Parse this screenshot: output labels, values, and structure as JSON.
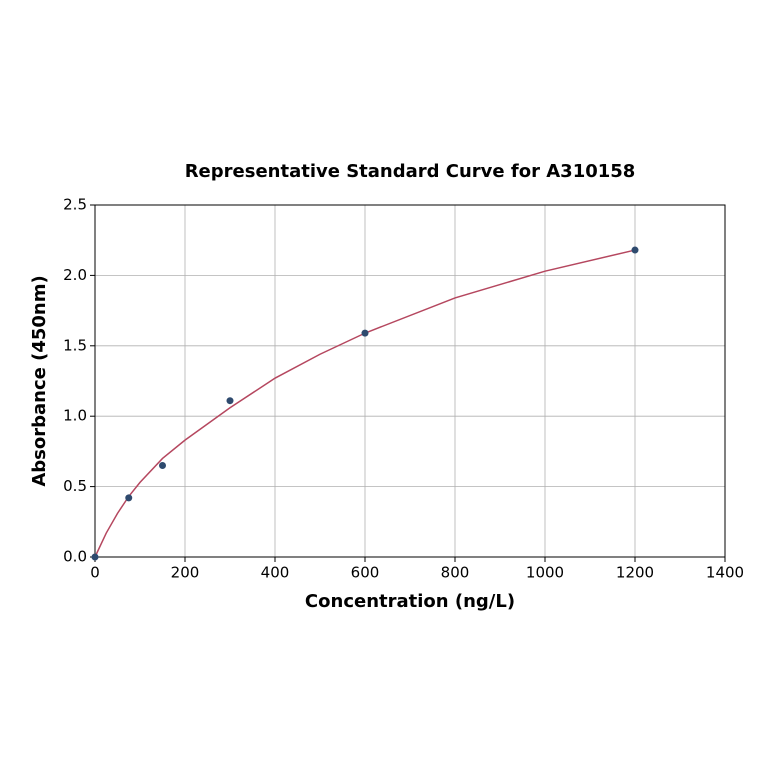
{
  "chart_data": {
    "type": "scatter",
    "title": "Representative Standard Curve for A310158",
    "x_label": "Concentration (ng/L)",
    "y_label": "Absorbance (450nm)",
    "x": [
      0,
      75,
      150,
      300,
      600,
      1200
    ],
    "values": [
      0,
      0.42,
      0.65,
      1.11,
      1.59,
      2.18
    ],
    "color": "#2e4a6e",
    "fit": {
      "color": "#b5475f",
      "x": [
        0,
        25,
        50,
        75,
        100,
        150,
        200,
        300,
        400,
        500,
        600,
        800,
        1000,
        1200
      ],
      "values": [
        0,
        0.17,
        0.31,
        0.43,
        0.53,
        0.7,
        0.83,
        1.06,
        1.27,
        1.44,
        1.59,
        1.84,
        2.03,
        2.18
      ]
    },
    "xlim": [
      0,
      1400
    ],
    "ylim": [
      0,
      2.5
    ],
    "xticks": [
      0,
      200,
      400,
      600,
      800,
      1000,
      1200,
      1400
    ],
    "yticks": [
      {
        "value": 0,
        "label": "0.0"
      },
      0.5,
      {
        "value": 1,
        "label": "1.0"
      },
      1.5,
      {
        "value": 2,
        "label": "2.0"
      },
      2.5
    ],
    "grid": true
  }
}
